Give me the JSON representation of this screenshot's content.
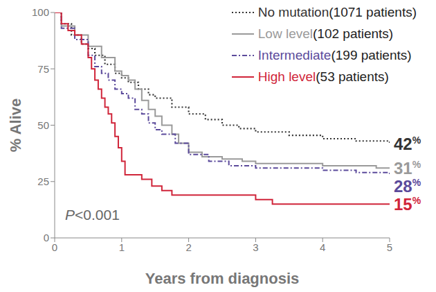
{
  "chart_data": {
    "type": "line",
    "x_label": "Years from diagnosis",
    "y_label": "% Alive",
    "annotation": "P<0.001",
    "xlim": [
      0,
      5
    ],
    "xticks": [
      0,
      1,
      2,
      3,
      4,
      5
    ],
    "ylim": [
      0,
      100
    ],
    "yticks": [
      0,
      25,
      50,
      75,
      100
    ],
    "grid": false,
    "legend": "top-right",
    "series": [
      {
        "name": "No mutation (1071 patients)",
        "color": "#333333",
        "line_style": "dotted",
        "end_label": "42%",
        "x": [
          0,
          0.1,
          0.25,
          0.4,
          0.5,
          0.6,
          0.75,
          0.9,
          1.0,
          1.1,
          1.25,
          1.4,
          1.5,
          1.75,
          2.0,
          2.25,
          2.5,
          2.75,
          3.0,
          3.5,
          4.0,
          4.5,
          5.0
        ],
        "values": [
          100,
          95,
          90,
          86,
          84,
          81,
          77,
          73,
          71,
          69,
          66,
          63.5,
          62,
          58,
          55,
          52.5,
          50,
          48.5,
          47,
          45.5,
          44,
          43,
          42
        ]
      },
      {
        "name": "Low level (102 patients)",
        "color": "#9a9a9a",
        "line_style": "solid",
        "end_label": "31%",
        "x": [
          0,
          0.1,
          0.3,
          0.5,
          0.7,
          0.9,
          1.0,
          1.1,
          1.2,
          1.3,
          1.4,
          1.5,
          1.6,
          1.75,
          1.85,
          2.0,
          2.2,
          2.5,
          2.8,
          3.0,
          4.0,
          4.8,
          5.0
        ],
        "values": [
          100,
          94,
          90,
          85,
          80,
          74,
          72,
          70,
          66,
          61,
          57,
          54,
          50,
          46,
          42,
          38,
          36,
          35,
          34,
          33,
          32,
          31,
          31
        ]
      },
      {
        "name": "Intermediate (199 patients)",
        "color": "#5b4a9b",
        "line_style": "dashdot",
        "end_label": "28%",
        "x": [
          0,
          0.1,
          0.3,
          0.5,
          0.6,
          0.7,
          0.8,
          0.9,
          1.0,
          1.1,
          1.2,
          1.3,
          1.4,
          1.5,
          1.6,
          1.8,
          2.0,
          2.3,
          2.6,
          3.0,
          4.0,
          4.5,
          5.0
        ],
        "values": [
          100,
          93,
          88,
          81,
          76,
          73,
          70,
          66,
          64,
          62,
          57,
          55,
          51,
          48,
          46,
          42,
          37,
          34,
          32,
          31,
          30,
          29,
          28
        ]
      },
      {
        "name": "High level (53 patients)",
        "color": "#d0253a",
        "line_style": "solid",
        "end_label": "15%",
        "x": [
          0,
          0.1,
          0.2,
          0.3,
          0.4,
          0.5,
          0.55,
          0.6,
          0.65,
          0.7,
          0.75,
          0.8,
          0.85,
          0.9,
          0.95,
          1.0,
          1.05,
          1.3,
          1.45,
          1.6,
          1.75,
          3.0,
          3.25,
          5.0
        ],
        "values": [
          100,
          95,
          92,
          90,
          86,
          80,
          75,
          70,
          66,
          62,
          58,
          55,
          51,
          45,
          40,
          34,
          28,
          26,
          23,
          21,
          19,
          17,
          15,
          15
        ]
      }
    ]
  }
}
